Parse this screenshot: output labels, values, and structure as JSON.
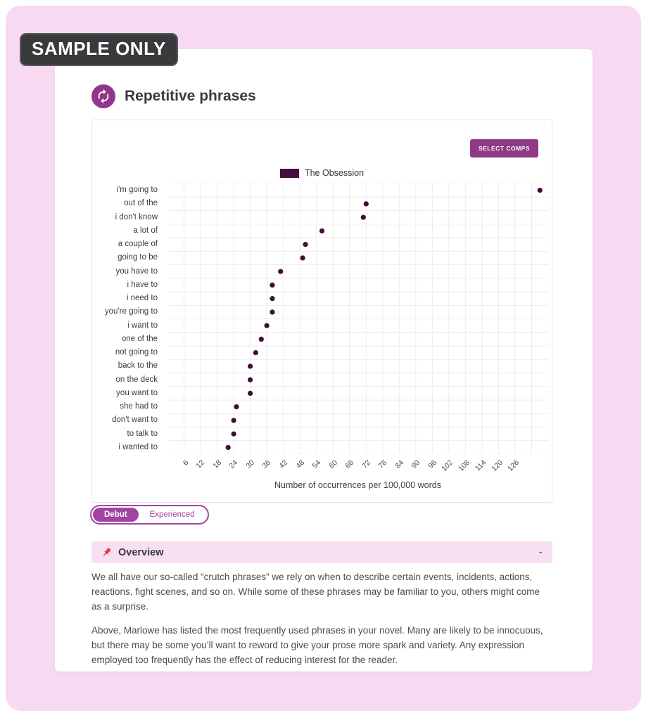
{
  "badge_label": "SAMPLE ONLY",
  "header": {
    "title": "Repetitive phrases",
    "icon": "repeat-icon"
  },
  "chart_panel": {
    "select_comps_button": "SELECT COMPS",
    "legend": {
      "series_label": "The Obsession",
      "swatch_color": "#43103f"
    }
  },
  "chart_data": {
    "type": "scatter",
    "orientation": "horizontal-dot-plot",
    "title": "",
    "categories": [
      "i'm going to",
      "out of the",
      "i don't know",
      "a lot of",
      "a couple of",
      "going to be",
      "you have to",
      "i have to",
      "i need to",
      "you're going to",
      "i want to",
      "one of the",
      "not going to",
      "back to the",
      "on the deck",
      "you want to",
      "she had to",
      "don't want to",
      "to talk to",
      "i wanted to"
    ],
    "values": [
      135,
      72,
      71,
      56,
      50,
      49,
      41,
      38,
      38,
      38,
      36,
      34,
      32,
      30,
      30,
      30,
      25,
      24,
      24,
      22
    ],
    "series_name": "The Obsession",
    "xlabel": "Number of occurrences per 100,000 words",
    "xticks": [
      6,
      12,
      18,
      24,
      30,
      36,
      42,
      48,
      54,
      60,
      66,
      72,
      78,
      84,
      90,
      96,
      102,
      108,
      114,
      120,
      126
    ],
    "xlim": [
      0,
      138
    ],
    "grid": true,
    "legend_position": "top-center",
    "point_color": "#3f0d3b",
    "grid_color": "#ececec"
  },
  "audience_toggle": {
    "options": [
      {
        "label": "Debut",
        "selected": true
      },
      {
        "label": "Experienced",
        "selected": false
      }
    ]
  },
  "overview": {
    "icon": "pushpin-icon",
    "title": "Overview",
    "collapse_control": "-",
    "paragraphs": [
      "We all have our so-called “crutch phrases” we rely on when to describe certain events, incidents, actions, reactions, fight scenes, and so on. While some of these phrases may be familiar to you, others might come as a surprise.",
      "Above, Marlowe has listed the most frequently used phrases in your novel. Many are likely to be innocuous, but there may be some you’ll want to reword to give your prose more spark and variety. Any expression employed too frequently has the effect of reducing interest for the reader."
    ]
  },
  "colors": {
    "accent_purple": "#93358b",
    "toggle_purple": "#a144a0",
    "page_background": "#f7d9f1",
    "badge_background": "#3a3a3c",
    "overview_bar_background": "#f8e0f3",
    "pin_red": "#e8384f"
  }
}
